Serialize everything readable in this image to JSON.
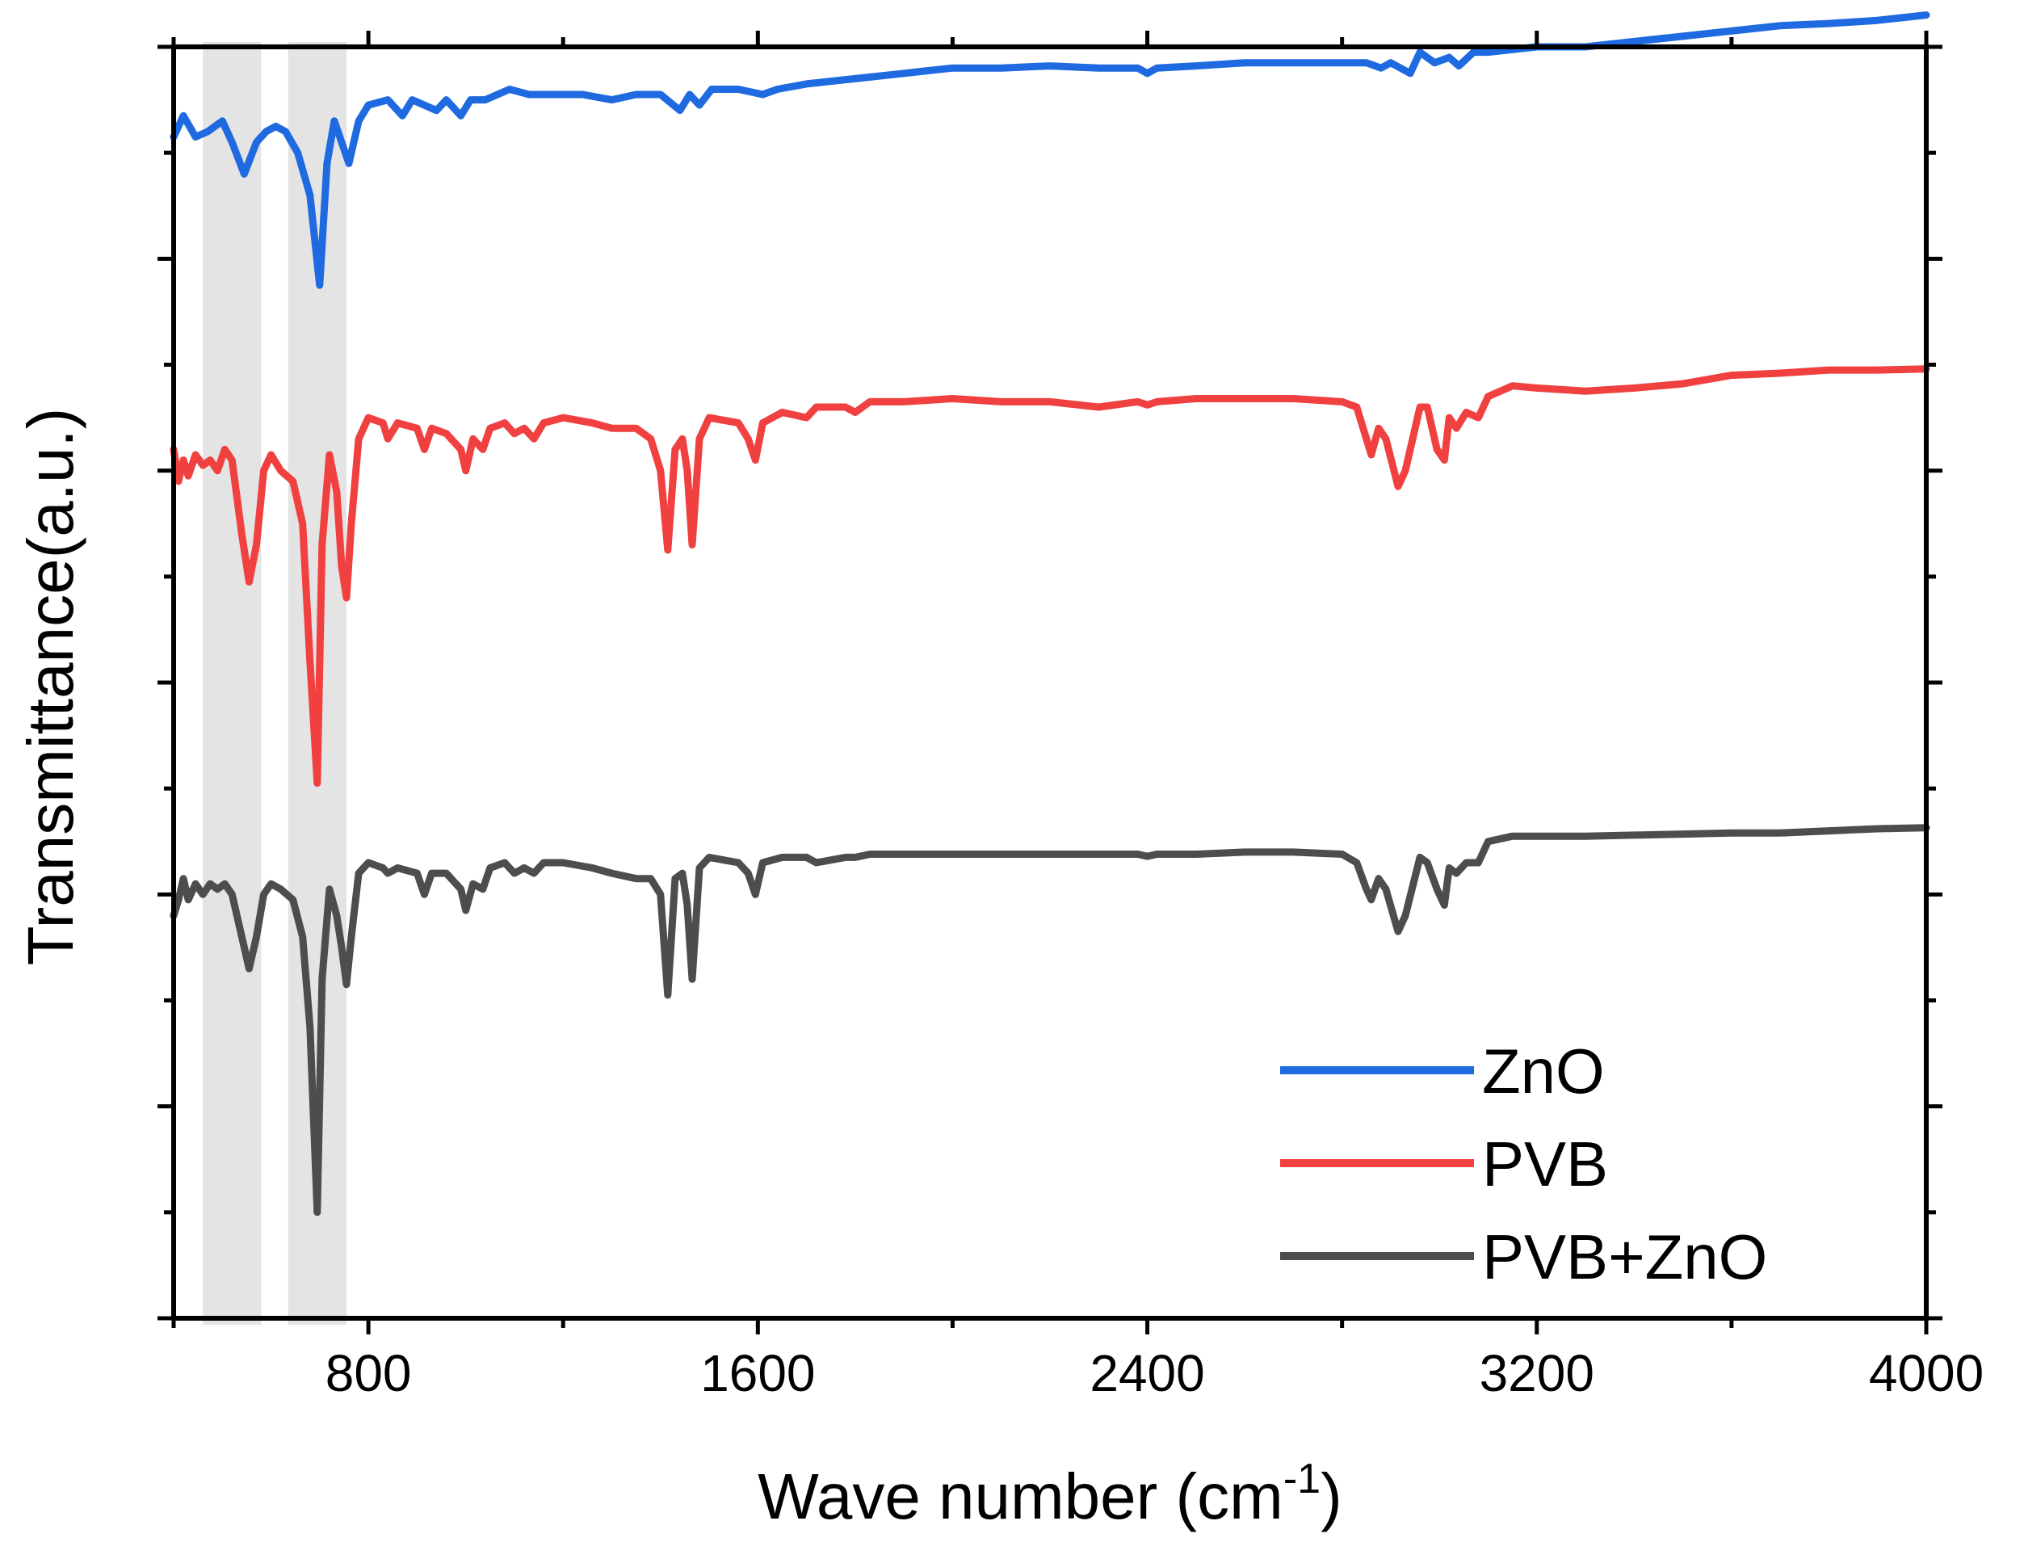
{
  "chart_data": {
    "type": "line",
    "title": "",
    "xlabel": "Wave number (cm",
    "xlabel_sup": "-1",
    "xlabel_close": ")",
    "ylabel": "Transmittance(a.u.)",
    "xlim": [
      400,
      4000
    ],
    "ylim": [
      0,
      12
    ],
    "x_ticks": [
      800,
      1600,
      2400,
      3200,
      4000
    ],
    "x_tick_labels": [
      "800",
      "1600",
      "2400",
      "3200",
      "4000"
    ],
    "x_minor_ticks": [
      400,
      1200,
      2000,
      2800,
      3600
    ],
    "y_ticks": [
      0,
      1,
      2,
      3,
      4,
      5,
      6,
      7,
      8,
      9,
      10,
      11,
      12
    ],
    "y_tick_labels_shown": false,
    "grid": false,
    "legend_position": "bottom-right",
    "highlight_bands": [
      {
        "x_range": [
          460,
          580
        ],
        "note": "shaded region"
      },
      {
        "x_range": [
          635,
          755
        ],
        "note": "shaded region"
      }
    ],
    "series": [
      {
        "name": "ZnO",
        "color": "#1f6ae0",
        "points": [
          [
            400,
            11.15
          ],
          [
            420,
            11.35
          ],
          [
            445,
            11.15
          ],
          [
            470,
            11.2
          ],
          [
            500,
            11.3
          ],
          [
            520,
            11.1
          ],
          [
            545,
            10.8
          ],
          [
            570,
            11.1
          ],
          [
            590,
            11.2
          ],
          [
            610,
            11.25
          ],
          [
            630,
            11.2
          ],
          [
            655,
            11.0
          ],
          [
            680,
            10.6
          ],
          [
            700,
            9.75
          ],
          [
            715,
            10.9
          ],
          [
            730,
            11.3
          ],
          [
            745,
            11.1
          ],
          [
            760,
            10.9
          ],
          [
            780,
            11.3
          ],
          [
            800,
            11.45
          ],
          [
            840,
            11.5
          ],
          [
            870,
            11.35
          ],
          [
            890,
            11.5
          ],
          [
            940,
            11.4
          ],
          [
            960,
            11.5
          ],
          [
            990,
            11.35
          ],
          [
            1010,
            11.5
          ],
          [
            1040,
            11.5
          ],
          [
            1090,
            11.6
          ],
          [
            1130,
            11.55
          ],
          [
            1180,
            11.55
          ],
          [
            1240,
            11.55
          ],
          [
            1300,
            11.5
          ],
          [
            1350,
            11.55
          ],
          [
            1400,
            11.55
          ],
          [
            1440,
            11.4
          ],
          [
            1460,
            11.55
          ],
          [
            1480,
            11.45
          ],
          [
            1505,
            11.6
          ],
          [
            1560,
            11.6
          ],
          [
            1610,
            11.55
          ],
          [
            1640,
            11.6
          ],
          [
            1700,
            11.65
          ],
          [
            1800,
            11.7
          ],
          [
            1900,
            11.75
          ],
          [
            2000,
            11.8
          ],
          [
            2100,
            11.8
          ],
          [
            2200,
            11.82
          ],
          [
            2300,
            11.8
          ],
          [
            2380,
            11.8
          ],
          [
            2400,
            11.75
          ],
          [
            2420,
            11.8
          ],
          [
            2500,
            11.82
          ],
          [
            2600,
            11.85
          ],
          [
            2700,
            11.85
          ],
          [
            2800,
            11.85
          ],
          [
            2850,
            11.85
          ],
          [
            2880,
            11.8
          ],
          [
            2900,
            11.85
          ],
          [
            2940,
            11.75
          ],
          [
            2960,
            11.95
          ],
          [
            2990,
            11.85
          ],
          [
            3020,
            11.9
          ],
          [
            3040,
            11.82
          ],
          [
            3070,
            11.95
          ],
          [
            3100,
            11.95
          ],
          [
            3200,
            12.0
          ],
          [
            3300,
            12.0
          ],
          [
            3400,
            12.05
          ],
          [
            3500,
            12.1
          ],
          [
            3600,
            12.15
          ],
          [
            3700,
            12.2
          ],
          [
            3800,
            12.22
          ],
          [
            3900,
            12.25
          ],
          [
            4000,
            12.3
          ]
        ]
      },
      {
        "name": "PVB",
        "color": "#f04040",
        "points": [
          [
            400,
            8.2
          ],
          [
            410,
            7.9
          ],
          [
            420,
            8.1
          ],
          [
            430,
            7.95
          ],
          [
            445,
            8.15
          ],
          [
            460,
            8.05
          ],
          [
            475,
            8.1
          ],
          [
            490,
            8.0
          ],
          [
            505,
            8.2
          ],
          [
            520,
            8.1
          ],
          [
            540,
            7.4
          ],
          [
            555,
            6.95
          ],
          [
            570,
            7.3
          ],
          [
            585,
            8.0
          ],
          [
            600,
            8.15
          ],
          [
            620,
            8.0
          ],
          [
            645,
            7.9
          ],
          [
            665,
            7.5
          ],
          [
            680,
            6.2
          ],
          [
            695,
            5.05
          ],
          [
            705,
            7.3
          ],
          [
            720,
            8.15
          ],
          [
            735,
            7.8
          ],
          [
            745,
            7.1
          ],
          [
            755,
            6.8
          ],
          [
            765,
            7.5
          ],
          [
            780,
            8.3
          ],
          [
            800,
            8.5
          ],
          [
            830,
            8.45
          ],
          [
            840,
            8.3
          ],
          [
            860,
            8.45
          ],
          [
            900,
            8.4
          ],
          [
            915,
            8.2
          ],
          [
            930,
            8.4
          ],
          [
            960,
            8.35
          ],
          [
            990,
            8.2
          ],
          [
            1000,
            8.0
          ],
          [
            1015,
            8.3
          ],
          [
            1035,
            8.2
          ],
          [
            1050,
            8.4
          ],
          [
            1080,
            8.45
          ],
          [
            1100,
            8.35
          ],
          [
            1120,
            8.4
          ],
          [
            1140,
            8.3
          ],
          [
            1160,
            8.45
          ],
          [
            1200,
            8.5
          ],
          [
            1260,
            8.45
          ],
          [
            1300,
            8.4
          ],
          [
            1350,
            8.4
          ],
          [
            1380,
            8.3
          ],
          [
            1400,
            8.0
          ],
          [
            1415,
            7.25
          ],
          [
            1430,
            8.2
          ],
          [
            1445,
            8.3
          ],
          [
            1455,
            8.0
          ],
          [
            1465,
            7.3
          ],
          [
            1480,
            8.3
          ],
          [
            1500,
            8.5
          ],
          [
            1560,
            8.45
          ],
          [
            1580,
            8.3
          ],
          [
            1595,
            8.1
          ],
          [
            1610,
            8.45
          ],
          [
            1650,
            8.55
          ],
          [
            1700,
            8.5
          ],
          [
            1720,
            8.6
          ],
          [
            1780,
            8.6
          ],
          [
            1800,
            8.55
          ],
          [
            1830,
            8.65
          ],
          [
            1900,
            8.65
          ],
          [
            2000,
            8.68
          ],
          [
            2100,
            8.65
          ],
          [
            2200,
            8.65
          ],
          [
            2300,
            8.6
          ],
          [
            2380,
            8.65
          ],
          [
            2400,
            8.62
          ],
          [
            2420,
            8.65
          ],
          [
            2500,
            8.68
          ],
          [
            2600,
            8.68
          ],
          [
            2700,
            8.68
          ],
          [
            2800,
            8.65
          ],
          [
            2830,
            8.6
          ],
          [
            2850,
            8.3
          ],
          [
            2860,
            8.15
          ],
          [
            2875,
            8.4
          ],
          [
            2890,
            8.3
          ],
          [
            2915,
            7.85
          ],
          [
            2930,
            8.0
          ],
          [
            2960,
            8.6
          ],
          [
            2975,
            8.6
          ],
          [
            2995,
            8.2
          ],
          [
            3010,
            8.1
          ],
          [
            3020,
            8.5
          ],
          [
            3035,
            8.4
          ],
          [
            3055,
            8.55
          ],
          [
            3080,
            8.5
          ],
          [
            3100,
            8.7
          ],
          [
            3150,
            8.8
          ],
          [
            3200,
            8.78
          ],
          [
            3300,
            8.75
          ],
          [
            3400,
            8.78
          ],
          [
            3500,
            8.82
          ],
          [
            3600,
            8.9
          ],
          [
            3700,
            8.92
          ],
          [
            3800,
            8.95
          ],
          [
            3900,
            8.95
          ],
          [
            4000,
            8.96
          ]
        ]
      },
      {
        "name": "PVB+ZnO",
        "color": "#4d4d4d",
        "points": [
          [
            400,
            3.8
          ],
          [
            410,
            3.95
          ],
          [
            420,
            4.15
          ],
          [
            430,
            3.95
          ],
          [
            445,
            4.1
          ],
          [
            460,
            4.0
          ],
          [
            475,
            4.1
          ],
          [
            490,
            4.05
          ],
          [
            505,
            4.1
          ],
          [
            520,
            4.0
          ],
          [
            540,
            3.6
          ],
          [
            555,
            3.3
          ],
          [
            570,
            3.6
          ],
          [
            585,
            4.0
          ],
          [
            600,
            4.1
          ],
          [
            620,
            4.05
          ],
          [
            645,
            3.95
          ],
          [
            665,
            3.6
          ],
          [
            680,
            2.75
          ],
          [
            695,
            1.0
          ],
          [
            705,
            3.2
          ],
          [
            720,
            4.05
          ],
          [
            735,
            3.8
          ],
          [
            745,
            3.5
          ],
          [
            755,
            3.15
          ],
          [
            765,
            3.6
          ],
          [
            780,
            4.2
          ],
          [
            800,
            4.3
          ],
          [
            830,
            4.25
          ],
          [
            840,
            4.2
          ],
          [
            860,
            4.25
          ],
          [
            900,
            4.2
          ],
          [
            915,
            4.0
          ],
          [
            930,
            4.2
          ],
          [
            960,
            4.2
          ],
          [
            990,
            4.05
          ],
          [
            1000,
            3.85
          ],
          [
            1015,
            4.1
          ],
          [
            1035,
            4.05
          ],
          [
            1050,
            4.25
          ],
          [
            1080,
            4.3
          ],
          [
            1100,
            4.2
          ],
          [
            1120,
            4.25
          ],
          [
            1140,
            4.2
          ],
          [
            1160,
            4.3
          ],
          [
            1200,
            4.3
          ],
          [
            1260,
            4.25
          ],
          [
            1300,
            4.2
          ],
          [
            1350,
            4.15
          ],
          [
            1380,
            4.15
          ],
          [
            1400,
            4.0
          ],
          [
            1415,
            3.05
          ],
          [
            1430,
            4.15
          ],
          [
            1445,
            4.2
          ],
          [
            1455,
            3.9
          ],
          [
            1465,
            3.2
          ],
          [
            1480,
            4.25
          ],
          [
            1500,
            4.35
          ],
          [
            1560,
            4.3
          ],
          [
            1580,
            4.2
          ],
          [
            1595,
            4.0
          ],
          [
            1610,
            4.3
          ],
          [
            1650,
            4.35
          ],
          [
            1700,
            4.35
          ],
          [
            1720,
            4.3
          ],
          [
            1780,
            4.35
          ],
          [
            1800,
            4.35
          ],
          [
            1830,
            4.38
          ],
          [
            1900,
            4.38
          ],
          [
            2000,
            4.38
          ],
          [
            2100,
            4.38
          ],
          [
            2200,
            4.38
          ],
          [
            2300,
            4.38
          ],
          [
            2380,
            4.38
          ],
          [
            2400,
            4.36
          ],
          [
            2420,
            4.38
          ],
          [
            2500,
            4.38
          ],
          [
            2600,
            4.4
          ],
          [
            2700,
            4.4
          ],
          [
            2800,
            4.38
          ],
          [
            2830,
            4.3
          ],
          [
            2850,
            4.05
          ],
          [
            2860,
            3.95
          ],
          [
            2875,
            4.15
          ],
          [
            2890,
            4.05
          ],
          [
            2915,
            3.65
          ],
          [
            2930,
            3.8
          ],
          [
            2960,
            4.35
          ],
          [
            2975,
            4.3
          ],
          [
            2995,
            4.05
          ],
          [
            3010,
            3.9
          ],
          [
            3020,
            4.25
          ],
          [
            3035,
            4.2
          ],
          [
            3055,
            4.3
          ],
          [
            3080,
            4.3
          ],
          [
            3100,
            4.5
          ],
          [
            3150,
            4.55
          ],
          [
            3200,
            4.55
          ],
          [
            3300,
            4.55
          ],
          [
            3400,
            4.56
          ],
          [
            3500,
            4.57
          ],
          [
            3600,
            4.58
          ],
          [
            3700,
            4.58
          ],
          [
            3800,
            4.6
          ],
          [
            3900,
            4.62
          ],
          [
            4000,
            4.63
          ]
        ]
      }
    ]
  }
}
